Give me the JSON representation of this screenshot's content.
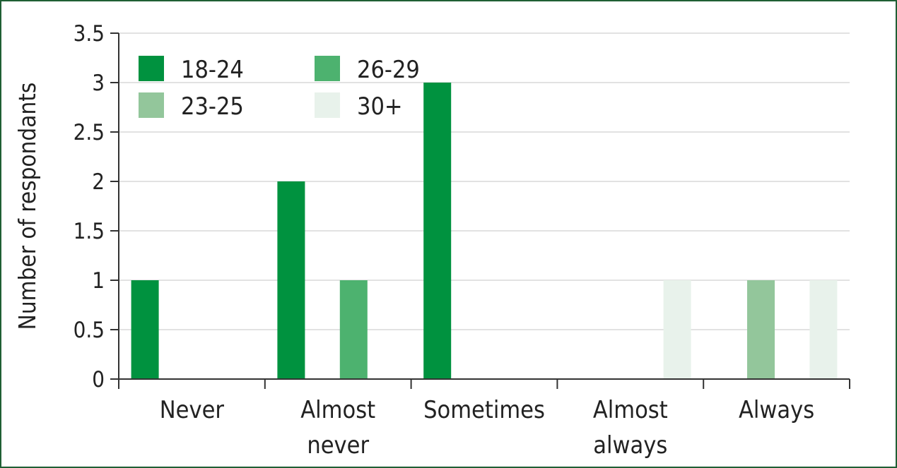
{
  "chart_data": {
    "type": "bar",
    "title": "",
    "xlabel": "",
    "ylabel": "Number of respondants",
    "ylim": [
      0,
      3.5
    ],
    "yticks": [
      "0",
      "0.5",
      "1",
      "1.5",
      "2",
      "2.5",
      "3",
      "3.5"
    ],
    "grid": true,
    "legend_placement": "top-left",
    "categories": [
      [
        "Never"
      ],
      [
        "Almost",
        "never"
      ],
      [
        "Sometimes"
      ],
      [
        "Almost",
        "always"
      ],
      [
        "Always"
      ]
    ],
    "series": [
      {
        "name": "18-24",
        "color": "#00923f",
        "values": [
          1,
          2,
          3,
          0,
          0
        ]
      },
      {
        "name": "23-25",
        "color": "#93c69b",
        "values": [
          0,
          0,
          0,
          0,
          1
        ]
      },
      {
        "name": "26-29",
        "color": "#4db26f",
        "values": [
          0,
          1,
          0,
          0,
          0
        ]
      },
      {
        "name": "30+",
        "color": "#e8f2eb",
        "values": [
          0,
          0,
          0,
          1,
          1
        ]
      }
    ]
  }
}
